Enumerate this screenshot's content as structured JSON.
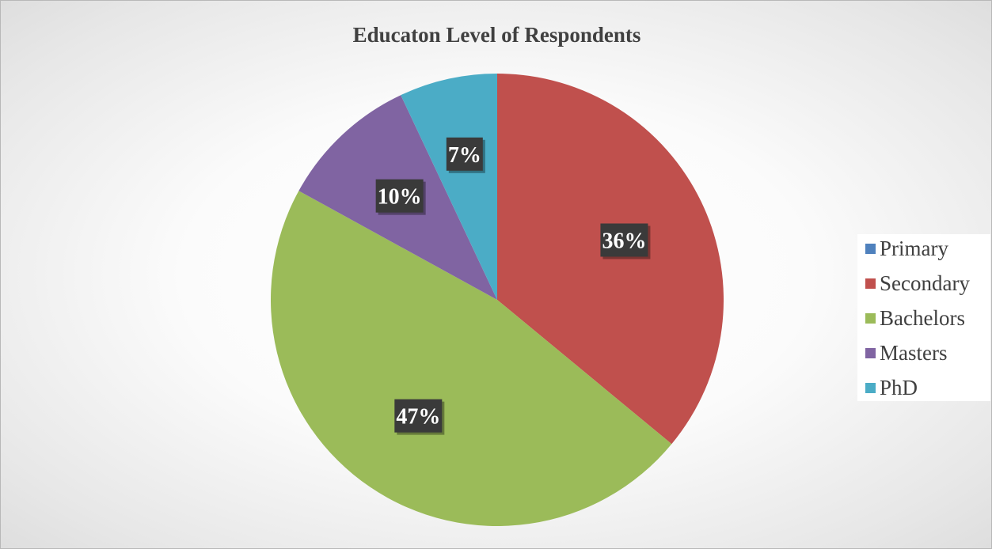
{
  "chart_data": {
    "type": "pie",
    "title": "Educaton Level of Respondents",
    "categories": [
      "Primary",
      "Secondary",
      "Bachelors",
      "Masters",
      "PhD"
    ],
    "values": [
      0,
      36,
      47,
      10,
      7
    ],
    "data_labels": [
      "",
      "36%",
      "47%",
      "10%",
      "7%"
    ],
    "colors": [
      "#4f81bd",
      "#c0504d",
      "#9bbb59",
      "#8064a2",
      "#4bacc6"
    ],
    "start_angle_deg": 0,
    "direction": "clockwise",
    "legend_position": "right",
    "grid": false
  }
}
